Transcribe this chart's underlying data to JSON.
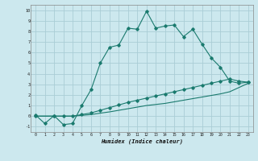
{
  "xlabel": "Humidex (Indice chaleur)",
  "ylabel": "",
  "bg_color": "#cce8ee",
  "grid_color": "#aacdd6",
  "line_color": "#1a7a6e",
  "xlim": [
    -0.5,
    23.5
  ],
  "ylim": [
    -1.5,
    10.5
  ],
  "xticks": [
    0,
    1,
    2,
    3,
    4,
    5,
    6,
    7,
    8,
    9,
    10,
    11,
    12,
    13,
    14,
    15,
    16,
    17,
    18,
    19,
    20,
    21,
    22,
    23
  ],
  "yticks": [
    -1,
    0,
    1,
    2,
    3,
    4,
    5,
    6,
    7,
    8,
    9,
    10
  ],
  "series1_x": [
    0,
    1,
    2,
    3,
    4,
    5,
    6,
    7,
    8,
    9,
    10,
    11,
    12,
    13,
    14,
    15,
    16,
    17,
    18,
    19,
    20,
    21,
    22,
    23
  ],
  "series1_y": [
    0.1,
    -0.7,
    0.05,
    -0.8,
    -0.7,
    1.0,
    2.5,
    5.0,
    6.5,
    6.7,
    8.3,
    8.2,
    9.9,
    8.3,
    8.5,
    8.6,
    7.5,
    8.2,
    6.8,
    5.5,
    4.6,
    3.3,
    3.1,
    3.2
  ],
  "series2_x": [
    0,
    2,
    3,
    4,
    5,
    6,
    7,
    8,
    9,
    10,
    11,
    12,
    13,
    14,
    15,
    16,
    17,
    18,
    19,
    20,
    21,
    22,
    23
  ],
  "series2_y": [
    0.0,
    0.0,
    0.0,
    0.0,
    0.15,
    0.3,
    0.55,
    0.8,
    1.05,
    1.3,
    1.5,
    1.7,
    1.9,
    2.1,
    2.3,
    2.5,
    2.7,
    2.9,
    3.1,
    3.3,
    3.5,
    3.3,
    3.2
  ],
  "series3_x": [
    0,
    2,
    3,
    4,
    5,
    6,
    7,
    8,
    9,
    10,
    11,
    12,
    13,
    14,
    15,
    16,
    17,
    18,
    19,
    20,
    21,
    22,
    23
  ],
  "series3_y": [
    0.0,
    0.0,
    0.0,
    0.0,
    0.07,
    0.15,
    0.28,
    0.4,
    0.55,
    0.7,
    0.85,
    1.0,
    1.1,
    1.2,
    1.35,
    1.5,
    1.65,
    1.8,
    1.95,
    2.1,
    2.3,
    2.7,
    3.1
  ]
}
